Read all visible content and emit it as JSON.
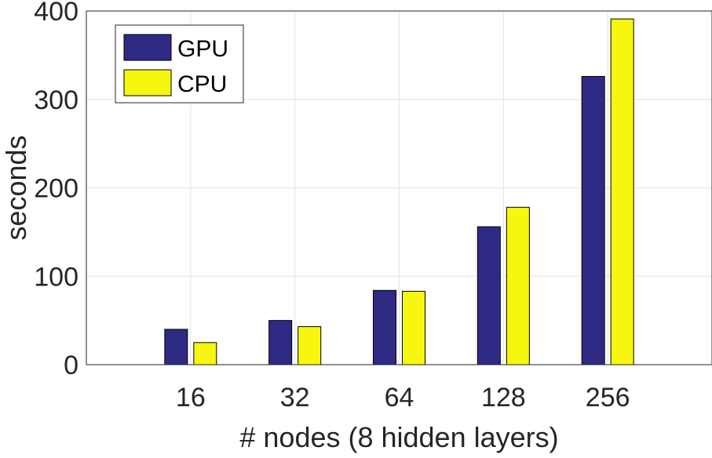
{
  "chart_data": {
    "type": "bar",
    "title": "",
    "xlabel": "# nodes (8 hidden layers)",
    "ylabel": "seconds",
    "categories": [
      "16",
      "32",
      "64",
      "128",
      "256"
    ],
    "series": [
      {
        "name": "GPU",
        "color": "#2e2a84",
        "values": [
          40,
          50,
          84,
          156,
          326
        ]
      },
      {
        "name": "CPU",
        "color": "#f6f60f",
        "values": [
          25,
          43,
          83,
          178,
          391
        ]
      }
    ],
    "ylim": [
      0,
      400
    ],
    "yticks": [
      0,
      100,
      200,
      300,
      400
    ],
    "grid": true,
    "legend_position": "top-left"
  }
}
